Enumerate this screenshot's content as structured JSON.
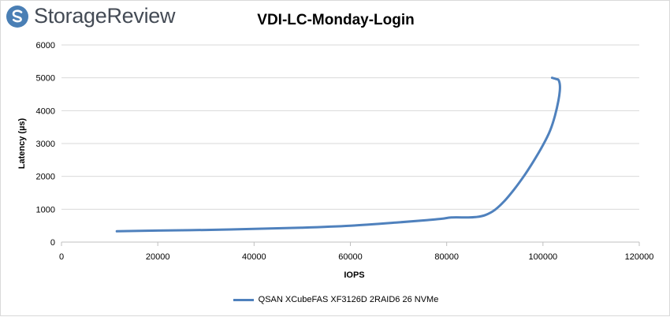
{
  "header": {
    "brand": "StorageReview",
    "logo_icon": "storagereview-logo-icon",
    "brand_color": "#4a7fb5"
  },
  "chart_data": {
    "type": "line",
    "title": "VDI-LC-Monday-Login",
    "xlabel": "IOPS",
    "ylabel": "Latency (µs)",
    "xlim": [
      0,
      120000
    ],
    "ylim": [
      0,
      6000
    ],
    "xticks": [
      0,
      20000,
      40000,
      60000,
      80000,
      100000,
      120000
    ],
    "yticks": [
      0,
      1000,
      2000,
      3000,
      4000,
      5000,
      6000
    ],
    "grid": "horizontal",
    "legend_position": "bottom",
    "series": [
      {
        "name": "QSAN XCubeFAS XF3126D 2RAID6 26 NVMe",
        "color": "#4f81bd",
        "x": [
          11500,
          20000,
          30000,
          40000,
          50000,
          60000,
          70000,
          76000,
          79000,
          81000,
          84000,
          86000,
          88000,
          90000,
          92000,
          94000,
          96000,
          98000,
          100000,
          101500,
          102500,
          103200,
          103500,
          103500,
          103200,
          102800,
          101900
        ],
        "y": [
          330,
          350,
          370,
          400,
          440,
          500,
          600,
          670,
          710,
          750,
          750,
          760,
          820,
          980,
          1250,
          1600,
          2000,
          2450,
          2950,
          3400,
          3850,
          4300,
          4600,
          4800,
          4940,
          4960,
          5000
        ]
      }
    ]
  }
}
